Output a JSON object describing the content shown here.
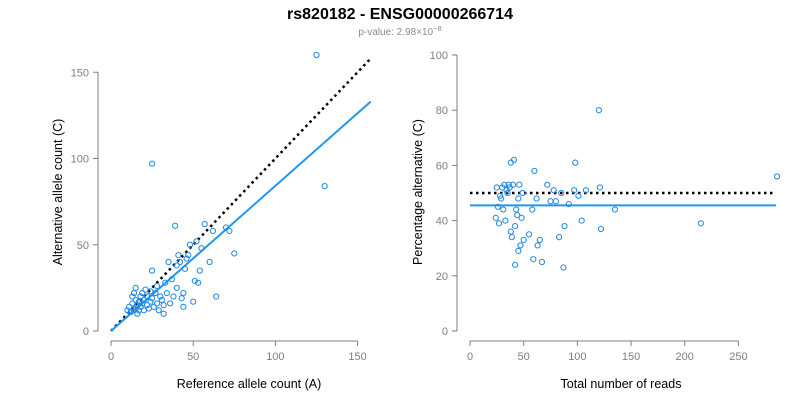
{
  "header": {
    "title": "rs820182 - ENSG00000266714",
    "pvalue_prefix": "p-value: 2.98×10",
    "pvalue_exponent": "−8"
  },
  "colors": {
    "points": "#1e88e5",
    "fit_line": "#2196f3",
    "reference_line": "#000000",
    "axis": "#7f7f7f"
  },
  "chart_data": [
    {
      "type": "scatter",
      "title": "",
      "xlabel": "Reference allele count (A)",
      "ylabel": "Alternative allele count (C)",
      "xlim": [
        0,
        160
      ],
      "ylim": [
        0,
        160
      ],
      "xticks": [
        0,
        50,
        100,
        150
      ],
      "yticks": [
        0,
        50,
        100,
        150
      ],
      "grid": false,
      "reference_line": {
        "style": "dotted",
        "from": [
          0,
          0
        ],
        "to": [
          158,
          158
        ]
      },
      "fit_line": {
        "from": [
          0,
          0
        ],
        "to": [
          158,
          133
        ]
      },
      "points": [
        [
          10,
          12
        ],
        [
          11,
          14
        ],
        [
          12,
          11
        ],
        [
          13,
          16
        ],
        [
          13,
          20
        ],
        [
          14,
          12
        ],
        [
          14,
          22
        ],
        [
          15,
          13
        ],
        [
          15,
          18
        ],
        [
          15,
          25
        ],
        [
          16,
          10
        ],
        [
          16,
          15
        ],
        [
          17,
          17
        ],
        [
          17,
          12
        ],
        [
          18,
          20
        ],
        [
          18,
          14
        ],
        [
          19,
          16
        ],
        [
          19,
          22
        ],
        [
          20,
          18
        ],
        [
          20,
          12
        ],
        [
          21,
          24
        ],
        [
          22,
          15
        ],
        [
          22,
          20
        ],
        [
          23,
          13
        ],
        [
          24,
          17
        ],
        [
          24,
          23
        ],
        [
          25,
          35
        ],
        [
          25,
          97
        ],
        [
          25,
          19
        ],
        [
          26,
          14
        ],
        [
          27,
          22
        ],
        [
          28,
          16
        ],
        [
          28,
          26
        ],
        [
          29,
          12
        ],
        [
          30,
          20
        ],
        [
          31,
          18
        ],
        [
          32,
          15
        ],
        [
          32,
          10
        ],
        [
          33,
          28
        ],
        [
          34,
          22
        ],
        [
          35,
          40
        ],
        [
          36,
          16
        ],
        [
          37,
          30
        ],
        [
          38,
          20
        ],
        [
          39,
          61
        ],
        [
          40,
          38
        ],
        [
          40,
          25
        ],
        [
          41,
          44
        ],
        [
          42,
          40
        ],
        [
          43,
          19
        ],
        [
          44,
          22
        ],
        [
          44,
          14
        ],
        [
          45,
          36
        ],
        [
          46,
          42
        ],
        [
          47,
          44
        ],
        [
          48,
          50
        ],
        [
          50,
          17
        ],
        [
          51,
          29
        ],
        [
          52,
          52
        ],
        [
          53,
          28
        ],
        [
          54,
          35
        ],
        [
          55,
          48
        ],
        [
          57,
          62
        ],
        [
          60,
          40
        ],
        [
          62,
          58
        ],
        [
          64,
          20
        ],
        [
          70,
          60
        ],
        [
          72,
          58
        ],
        [
          75,
          45
        ],
        [
          125,
          160
        ],
        [
          130,
          84
        ]
      ]
    },
    {
      "type": "scatter",
      "title": "",
      "xlabel": "Total number of reads",
      "ylabel": "Percentage alternative (C)",
      "xlim": [
        0,
        285
      ],
      "ylim": [
        0,
        100
      ],
      "xticks": [
        0,
        50,
        100,
        150,
        200,
        250
      ],
      "yticks": [
        0,
        20,
        40,
        60,
        80,
        100
      ],
      "grid": false,
      "reference_line": {
        "style": "dotted",
        "y": 50
      },
      "fit_line": {
        "y": 45.5
      },
      "points": [
        [
          24,
          41
        ],
        [
          25,
          52
        ],
        [
          26,
          45
        ],
        [
          27,
          39
        ],
        [
          28,
          49
        ],
        [
          29,
          48
        ],
        [
          30,
          52
        ],
        [
          31,
          44
        ],
        [
          32,
          53
        ],
        [
          33,
          40
        ],
        [
          34,
          51
        ],
        [
          35,
          50
        ],
        [
          36,
          53
        ],
        [
          37,
          52
        ],
        [
          38,
          61
        ],
        [
          38,
          36
        ],
        [
          39,
          34
        ],
        [
          40,
          53
        ],
        [
          41,
          62
        ],
        [
          42,
          24
        ],
        [
          42,
          38
        ],
        [
          43,
          44
        ],
        [
          44,
          42
        ],
        [
          45,
          29
        ],
        [
          45,
          48
        ],
        [
          46,
          53
        ],
        [
          47,
          31
        ],
        [
          48,
          41
        ],
        [
          49,
          50
        ],
        [
          50,
          33
        ],
        [
          55,
          35
        ],
        [
          58,
          44
        ],
        [
          59,
          26
        ],
        [
          60,
          58
        ],
        [
          62,
          48
        ],
        [
          63,
          31
        ],
        [
          65,
          33
        ],
        [
          67,
          25
        ],
        [
          72,
          53
        ],
        [
          75,
          47
        ],
        [
          78,
          51
        ],
        [
          80,
          47
        ],
        [
          83,
          34
        ],
        [
          85,
          50
        ],
        [
          87,
          23
        ],
        [
          88,
          38
        ],
        [
          92,
          46
        ],
        [
          97,
          51
        ],
        [
          98,
          61
        ],
        [
          101,
          49
        ],
        [
          104,
          40
        ],
        [
          108,
          51
        ],
        [
          120,
          80
        ],
        [
          121,
          52
        ],
        [
          122,
          37
        ],
        [
          135,
          44
        ],
        [
          215,
          39
        ],
        [
          286,
          56
        ]
      ]
    }
  ]
}
